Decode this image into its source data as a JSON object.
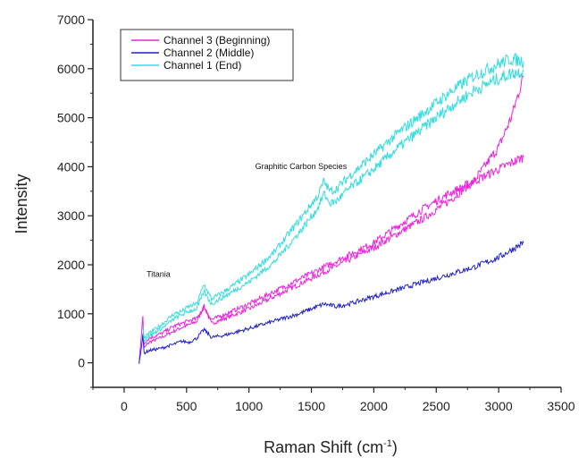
{
  "chart_data": {
    "type": "line",
    "xlabel": "Raman Shift (cm",
    "xlabel_sup": "-1",
    "xlabel_close": ")",
    "ylabel": "Intensity",
    "xlim": [
      -250,
      3500
    ],
    "ylim": [
      -500,
      7000
    ],
    "xticks": [
      0,
      500,
      1000,
      1500,
      2000,
      2500,
      3000,
      3500
    ],
    "yticks": [
      0,
      1000,
      2000,
      3000,
      4000,
      5000,
      6000,
      7000
    ],
    "grid": false,
    "legend_position": "top-left",
    "annotations": [
      {
        "text": "Titania",
        "x": 180,
        "y": 1750
      },
      {
        "text": "Graphitic Carbon Species",
        "x": 1050,
        "y": 3950
      }
    ],
    "series": [
      {
        "name": "Channel 3 (Beginning)",
        "color": "#ee22dd",
        "x": [
          120,
          150,
          160,
          200,
          300,
          400,
          460,
          520,
          580,
          640,
          700,
          800,
          1000,
          1200,
          1400,
          1600,
          1800,
          2000,
          2200,
          2400,
          2600,
          2800,
          3000,
          3100,
          3200
        ],
        "values": [
          0,
          950,
          300,
          420,
          520,
          650,
          720,
          780,
          840,
          1150,
          800,
          900,
          1100,
          1350,
          1600,
          1850,
          2100,
          2350,
          2650,
          2950,
          3300,
          3700,
          4400,
          5000,
          5850
        ]
      },
      {
        "name": "Channel 3 (Beginning)",
        "color": "#ee22dd",
        "legend": false,
        "x": [
          150,
          160,
          200,
          300,
          400,
          460,
          520,
          580,
          640,
          700,
          800,
          1000,
          1200,
          1400,
          1600,
          1800,
          2000,
          2200,
          2400,
          2600,
          2800,
          3000,
          3200
        ],
        "values": [
          600,
          400,
          500,
          600,
          750,
          800,
          860,
          900,
          1150,
          880,
          980,
          1200,
          1450,
          1700,
          1950,
          2200,
          2450,
          2800,
          3150,
          3450,
          3700,
          3950,
          4200
        ]
      },
      {
        "name": "Channel 2 (Middle)",
        "color": "#2222cc",
        "x": [
          120,
          150,
          160,
          200,
          300,
          400,
          460,
          520,
          580,
          640,
          700,
          800,
          1000,
          1200,
          1400,
          1600,
          1700,
          1800,
          2000,
          2200,
          2400,
          2600,
          2800,
          3000,
          3200
        ],
        "values": [
          0,
          550,
          200,
          250,
          300,
          380,
          440,
          420,
          500,
          680,
          520,
          560,
          700,
          850,
          1000,
          1200,
          1150,
          1200,
          1350,
          1500,
          1650,
          1800,
          1950,
          2150,
          2450
        ]
      },
      {
        "name": "Channel 1 (End)",
        "color": "#33dddd",
        "x": [
          150,
          160,
          200,
          300,
          400,
          460,
          520,
          580,
          640,
          700,
          800,
          1000,
          1200,
          1400,
          1550,
          1600,
          1650,
          1700,
          1800,
          2000,
          2200,
          2400,
          2600,
          2800,
          3000,
          3100,
          3200
        ],
        "values": [
          750,
          500,
          600,
          780,
          1000,
          1050,
          1150,
          1200,
          1600,
          1300,
          1450,
          1800,
          2250,
          2900,
          3400,
          3700,
          3500,
          3550,
          3800,
          4250,
          4700,
          5100,
          5500,
          5850,
          6100,
          6200,
          6150
        ]
      },
      {
        "name": "Channel 1 (End)",
        "color": "#33dddd",
        "legend": false,
        "x": [
          150,
          160,
          200,
          300,
          400,
          460,
          520,
          580,
          640,
          700,
          800,
          1000,
          1200,
          1400,
          1550,
          1600,
          1650,
          1700,
          1800,
          2000,
          2200,
          2400,
          2600,
          2800,
          3000,
          3100,
          3200
        ],
        "values": [
          650,
          450,
          550,
          700,
          900,
          980,
          1050,
          1100,
          1450,
          1200,
          1350,
          1650,
          2050,
          2650,
          3150,
          3450,
          3250,
          3300,
          3550,
          3950,
          4400,
          4800,
          5200,
          5550,
          5800,
          5900,
          5950
        ]
      }
    ]
  }
}
